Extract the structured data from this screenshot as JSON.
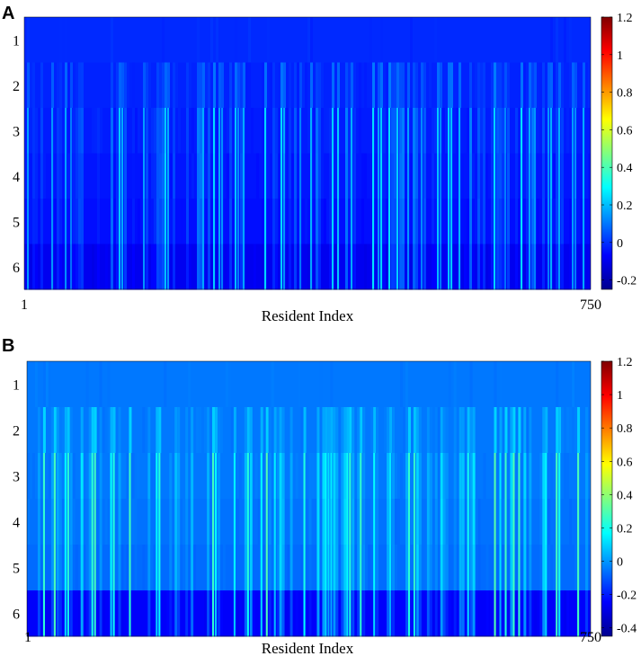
{
  "chart_data": [
    {
      "panel": "A",
      "type": "heatmap",
      "xlabel": "Resident Index",
      "x_ticks": [
        "1",
        "750"
      ],
      "x_range": [
        1,
        750
      ],
      "rows": [
        "1",
        "2",
        "3",
        "4",
        "5",
        "6"
      ],
      "row_base_values": [
        -0.01,
        -0.02,
        -0.03,
        -0.04,
        -0.05,
        -0.09
      ],
      "spike_max_value": 0.25,
      "colorbar": {
        "min": -0.25,
        "max": 1.2,
        "ticks": [
          "1.2",
          "1",
          "0.8",
          "0.6",
          "0.4",
          "0.2",
          "0",
          "-0.2"
        ]
      }
    },
    {
      "panel": "B",
      "type": "heatmap",
      "xlabel": "Resident Index",
      "x_ticks": [
        "1",
        "750"
      ],
      "x_range": [
        1,
        750
      ],
      "rows": [
        "1",
        "2",
        "3",
        "4",
        "5",
        "6"
      ],
      "row_base_values": [
        -0.05,
        -0.05,
        -0.05,
        -0.06,
        -0.07,
        -0.25
      ],
      "spike_max_value": 0.3,
      "colorbar": {
        "min": -0.45,
        "max": 1.2,
        "ticks": [
          "1.2",
          "1",
          "0.8",
          "0.6",
          "0.4",
          "0.2",
          "0",
          "-0.2",
          "-0.4"
        ]
      }
    }
  ],
  "colors": {
    "jet_start": "#00008f",
    "jet_end": "#800000"
  }
}
